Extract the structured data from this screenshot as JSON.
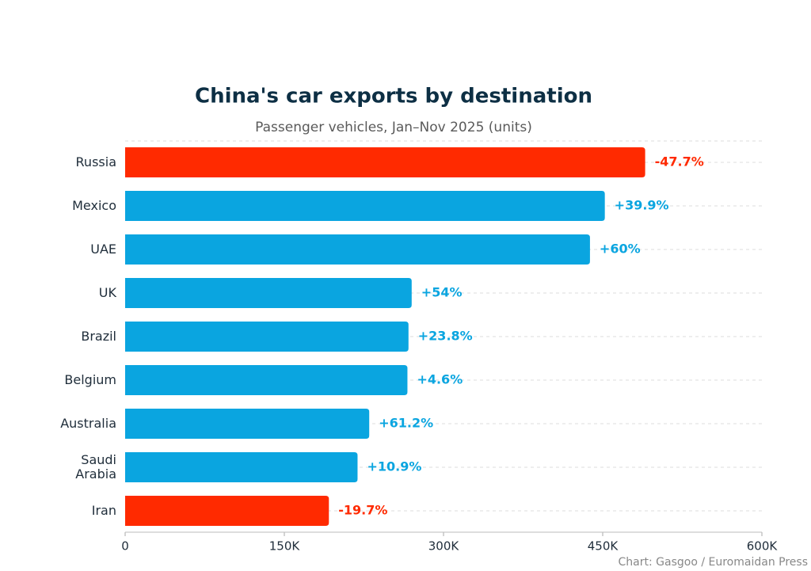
{
  "chart_data": {
    "type": "hbar",
    "title": "China's car exports by destination",
    "subtitle": "Passenger vehicles, Jan–Nov 2025 (units)",
    "source": "Chart: Gasgoo / Euromaidan Press",
    "categories": [
      "Russia",
      "Mexico",
      "UAE",
      "UK",
      "Brazil",
      "Belgium",
      "Australia",
      "Saudi Arabia",
      "Iran"
    ],
    "values": [
      490000,
      452000,
      438000,
      270000,
      267000,
      266000,
      230000,
      219000,
      192000
    ],
    "colors": [
      "#ff2a00",
      "#0aa5e0",
      "#0aa5e0",
      "#0aa5e0",
      "#0aa5e0",
      "#0aa5e0",
      "#0aa5e0",
      "#0aa5e0",
      "#ff2a00"
    ],
    "change_labels": [
      "-47.7%",
      "+39.9%",
      "+60%",
      "+54%",
      "+23.8%",
      "+4.6%",
      "+61.2%",
      "+10.9%",
      "-19.7%"
    ],
    "xlim": [
      0,
      600000
    ],
    "xticks": [
      0,
      {
        "value": 150000,
        "label": "150K"
      },
      {
        "value": 300000,
        "label": "300K"
      },
      {
        "value": 450000,
        "label": "450K"
      },
      {
        "value": 600000,
        "label": "600K"
      }
    ]
  }
}
